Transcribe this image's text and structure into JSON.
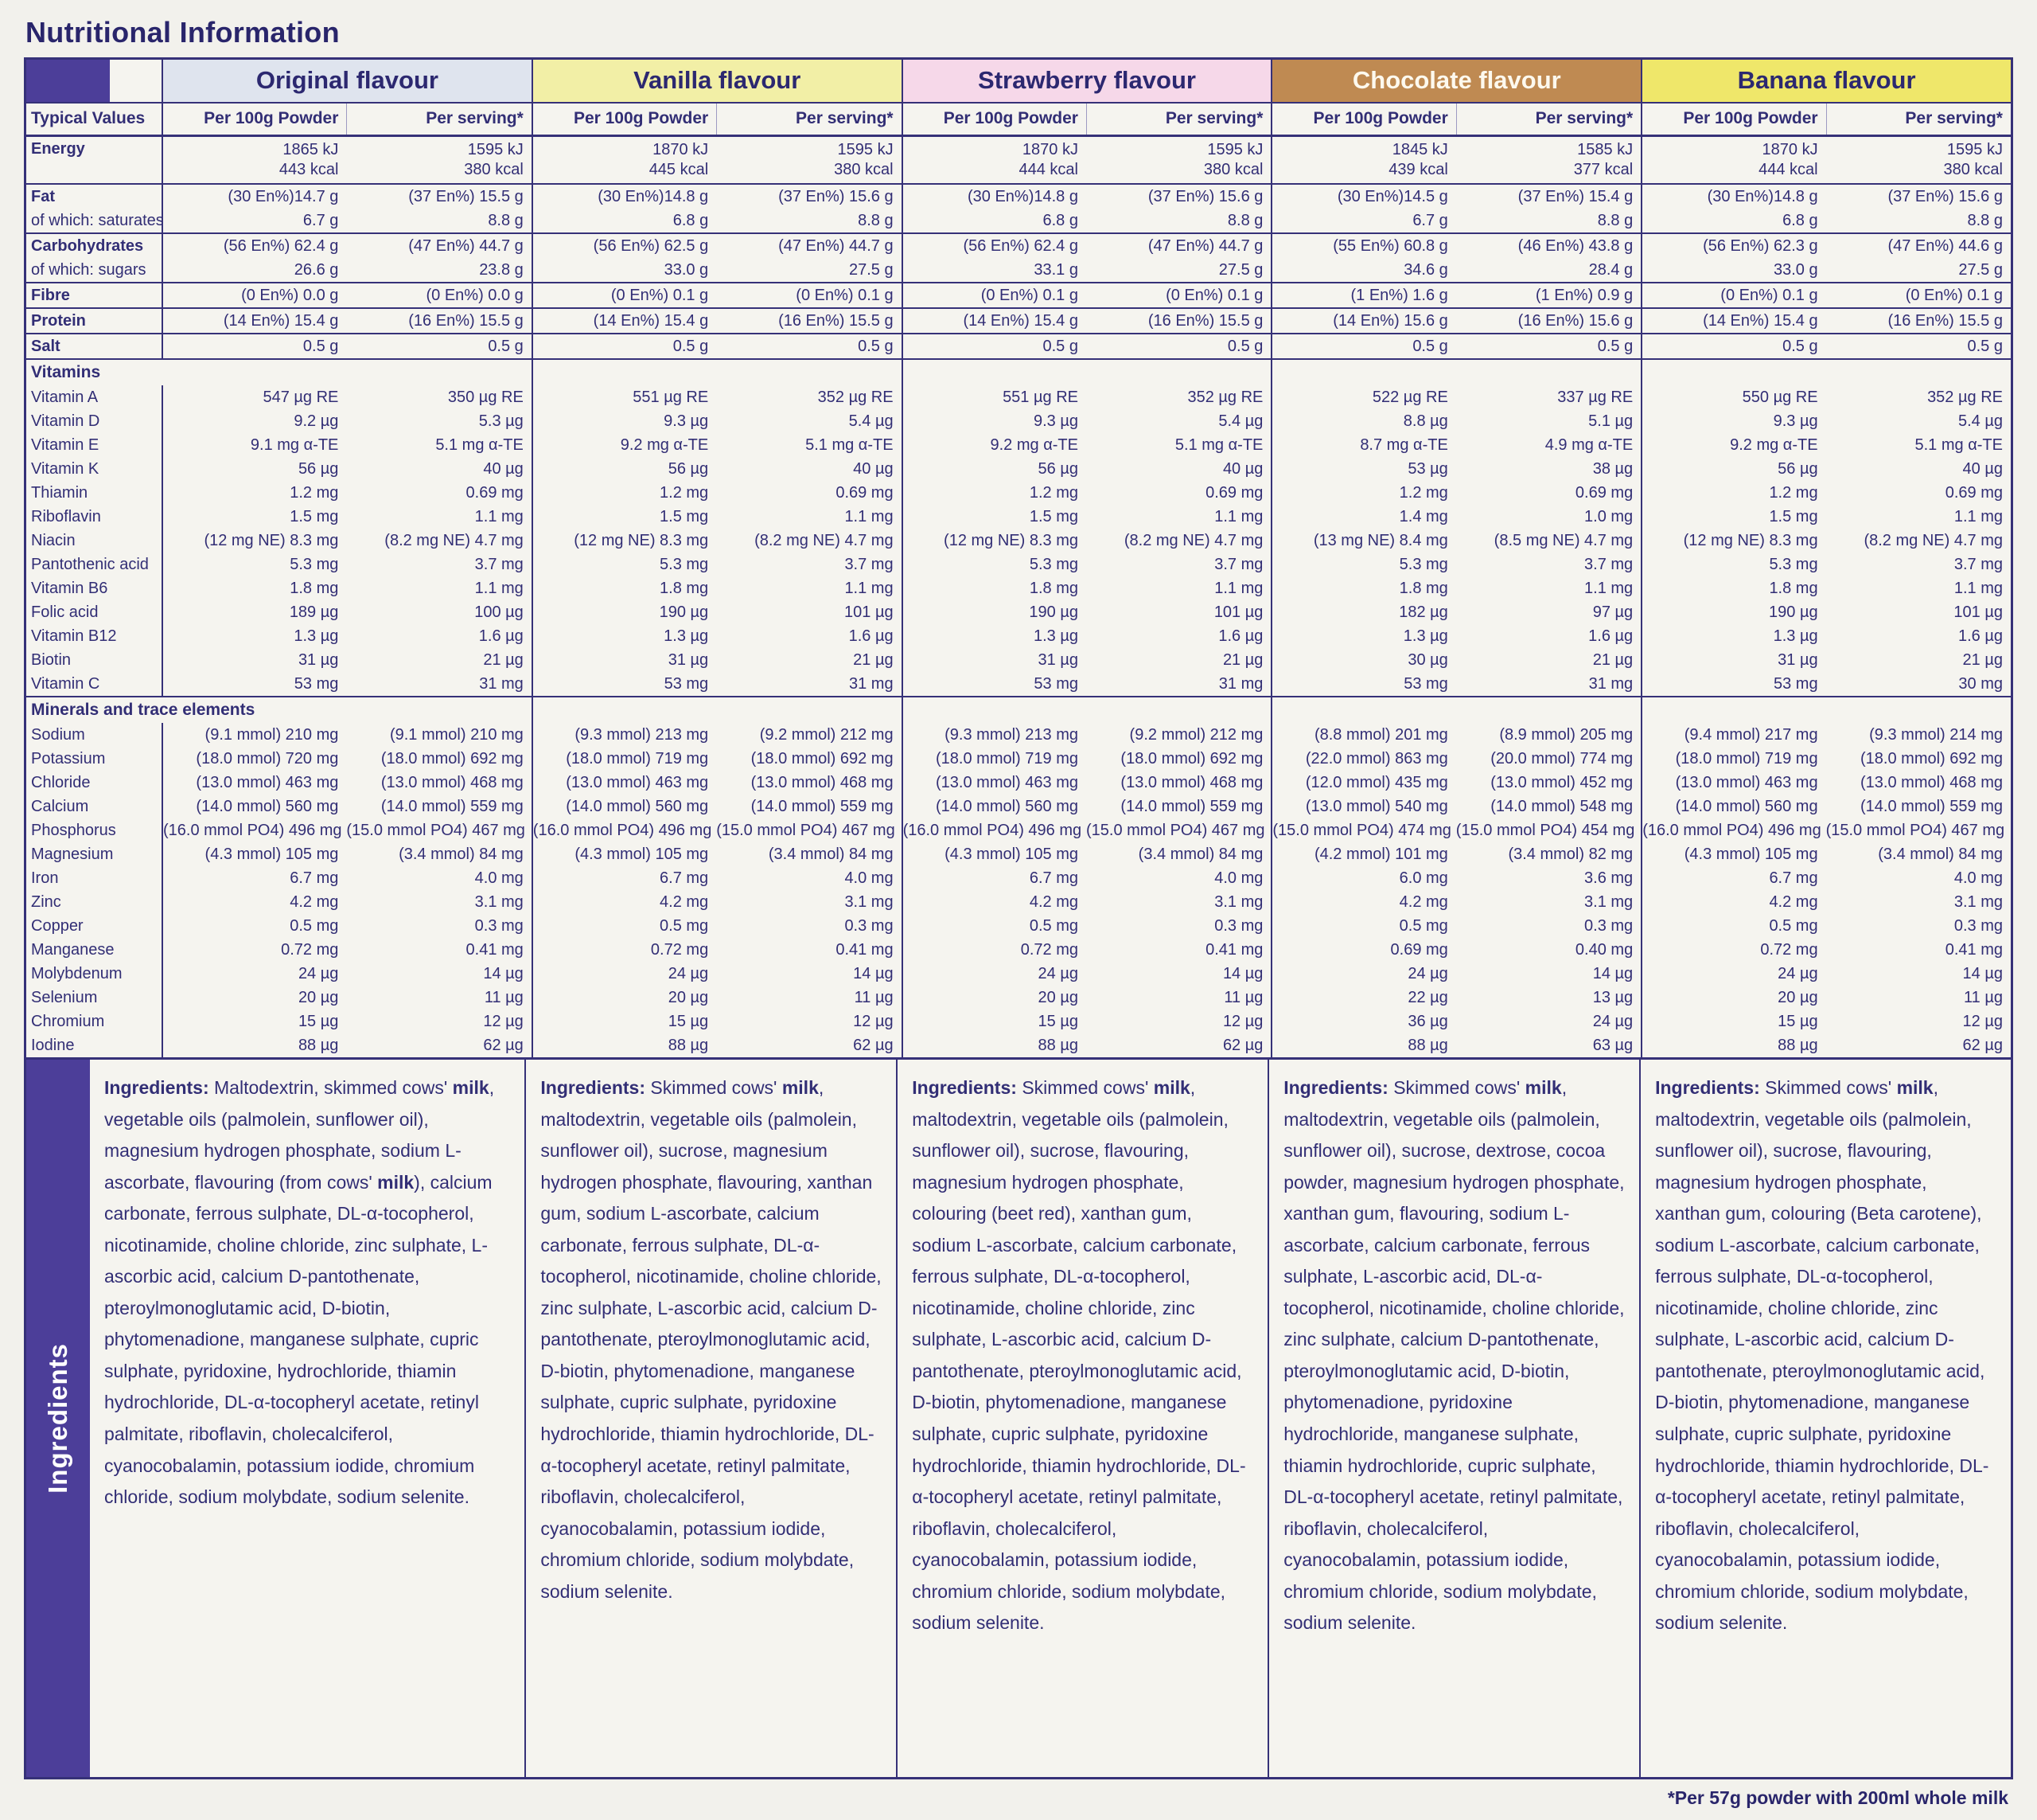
{
  "title": "Nutritional Information",
  "footnote": "*Per 57g powder with 200ml whole milk",
  "colors": {
    "accent_purple": "#4c3e99",
    "line_navy": "#363178",
    "text_navy": "#322e75"
  },
  "table": {
    "typical_values_label": "Typical Values",
    "subcol_labels": [
      "Per 100g Powder",
      "Per serving*"
    ],
    "flavours": [
      {
        "name": "Original flavour",
        "header_bg": "#dfe4ee",
        "header_fg": "#2c2870"
      },
      {
        "name": "Vanilla flavour",
        "header_bg": "#f2efa6",
        "header_fg": "#2c2870"
      },
      {
        "name": "Strawberry flavour",
        "header_bg": "#f6d8e9",
        "header_fg": "#2c2870"
      },
      {
        "name": "Chocolate flavour",
        "header_bg": "#bf8a52",
        "header_fg": "#fdf9ee"
      },
      {
        "name": "Banana flavour",
        "header_bg": "#efe76a",
        "header_fg": "#2c2870"
      }
    ],
    "rows": [
      {
        "type": "data",
        "style": "main",
        "label": "Energy",
        "rule": true,
        "values": [
          [
            "1865 kJ",
            "443 kcal"
          ],
          [
            "1595 kJ",
            "380 kcal"
          ],
          [
            "1870 kJ",
            "445 kcal"
          ],
          [
            "1595 kJ",
            "380 kcal"
          ],
          [
            "1870 kJ",
            "444 kcal"
          ],
          [
            "1595 kJ",
            "380 kcal"
          ],
          [
            "1845 kJ",
            "439 kcal"
          ],
          [
            "1585 kJ",
            "377 kcal"
          ],
          [
            "1870 kJ",
            "444 kcal"
          ],
          [
            "1595 kJ",
            "380 kcal"
          ]
        ]
      },
      {
        "type": "data",
        "style": "main",
        "label": "Fat",
        "values": [
          "(30 En%)14.7 g",
          "(37 En%) 15.5 g",
          "(30 En%)14.8 g",
          "(37 En%) 15.6 g",
          "(30 En%)14.8 g",
          "(37 En%) 15.6 g",
          "(30 En%)14.5 g",
          "(37 En%) 15.4 g",
          "(30 En%)14.8 g",
          "(37 En%) 15.6 g"
        ]
      },
      {
        "type": "data",
        "style": "sub",
        "label": "of which: saturates",
        "rule": true,
        "values": [
          "6.7 g",
          "8.8 g",
          "6.8 g",
          "8.8 g",
          "6.8 g",
          "8.8 g",
          "6.7 g",
          "8.8 g",
          "6.8 g",
          "8.8 g"
        ]
      },
      {
        "type": "data",
        "style": "main",
        "label": "Carbohydrates",
        "values": [
          "(56 En%) 62.4 g",
          "(47 En%) 44.7 g",
          "(56 En%) 62.5 g",
          "(47 En%) 44.7 g",
          "(56 En%) 62.4 g",
          "(47 En%) 44.7 g",
          "(55 En%) 60.8 g",
          "(46 En%) 43.8 g",
          "(56 En%) 62.3 g",
          "(47 En%) 44.6 g"
        ]
      },
      {
        "type": "data",
        "style": "sub",
        "label": "of which: sugars",
        "rule": true,
        "values": [
          "26.6 g",
          "23.8 g",
          "33.0 g",
          "27.5 g",
          "33.1 g",
          "27.5 g",
          "34.6 g",
          "28.4 g",
          "33.0 g",
          "27.5 g"
        ]
      },
      {
        "type": "data",
        "style": "main",
        "label": "Fibre",
        "rule": true,
        "values": [
          "(0 En%) 0.0 g",
          "(0 En%) 0.0 g",
          "(0 En%) 0.1 g",
          "(0 En%) 0.1 g",
          "(0 En%) 0.1 g",
          "(0 En%) 0.1 g",
          "(1 En%) 1.6 g",
          "(1 En%) 0.9 g",
          "(0 En%) 0.1 g",
          "(0 En%) 0.1 g"
        ]
      },
      {
        "type": "data",
        "style": "main",
        "label": "Protein",
        "rule": true,
        "values": [
          "(14 En%) 15.4 g",
          "(16 En%) 15.5 g",
          "(14 En%) 15.4 g",
          "(16 En%) 15.5 g",
          "(14 En%) 15.4 g",
          "(16 En%) 15.5 g",
          "(14 En%) 15.6 g",
          "(16 En%) 15.6 g",
          "(14 En%) 15.4 g",
          "(16 En%) 15.5 g"
        ]
      },
      {
        "type": "data",
        "style": "main",
        "label": "Salt",
        "rule": true,
        "values": [
          "0.5 g",
          "0.5 g",
          "0.5 g",
          "0.5 g",
          "0.5 g",
          "0.5 g",
          "0.5 g",
          "0.5 g",
          "0.5 g",
          "0.5 g"
        ]
      },
      {
        "type": "section",
        "label": "Vitamins"
      },
      {
        "type": "data",
        "label": "Vitamin A",
        "values": [
          "547 µg RE",
          "350 µg RE",
          "551 µg RE",
          "352 µg RE",
          "551 µg RE",
          "352 µg RE",
          "522 µg RE",
          "337 µg RE",
          "550 µg RE",
          "352 µg RE"
        ]
      },
      {
        "type": "data",
        "label": "Vitamin D",
        "values": [
          "9.2 µg",
          "5.3 µg",
          "9.3 µg",
          "5.4 µg",
          "9.3 µg",
          "5.4 µg",
          "8.8 µg",
          "5.1 µg",
          "9.3 µg",
          "5.4 µg"
        ]
      },
      {
        "type": "data",
        "label": "Vitamin E",
        "values": [
          "9.1 mg α-TE",
          "5.1 mg α-TE",
          "9.2 mg α-TE",
          "5.1 mg α-TE",
          "9.2 mg α-TE",
          "5.1 mg α-TE",
          "8.7 mg α-TE",
          "4.9 mg α-TE",
          "9.2 mg α-TE",
          "5.1 mg α-TE"
        ]
      },
      {
        "type": "data",
        "label": "Vitamin K",
        "values": [
          "56 µg",
          "40 µg",
          "56 µg",
          "40 µg",
          "56 µg",
          "40 µg",
          "53 µg",
          "38 µg",
          "56 µg",
          "40 µg"
        ]
      },
      {
        "type": "data",
        "label": "Thiamin",
        "values": [
          "1.2 mg",
          "0.69 mg",
          "1.2 mg",
          "0.69 mg",
          "1.2 mg",
          "0.69 mg",
          "1.2 mg",
          "0.69 mg",
          "1.2 mg",
          "0.69 mg"
        ]
      },
      {
        "type": "data",
        "label": "Riboflavin",
        "values": [
          "1.5 mg",
          "1.1 mg",
          "1.5 mg",
          "1.1 mg",
          "1.5 mg",
          "1.1 mg",
          "1.4 mg",
          "1.0 mg",
          "1.5 mg",
          "1.1 mg"
        ]
      },
      {
        "type": "data",
        "label": "Niacin",
        "values": [
          "(12 mg NE) 8.3 mg",
          "(8.2 mg NE) 4.7 mg",
          "(12 mg NE) 8.3 mg",
          "(8.2 mg NE) 4.7 mg",
          "(12 mg NE) 8.3 mg",
          "(8.2 mg NE) 4.7 mg",
          "(13 mg NE) 8.4 mg",
          "(8.5 mg NE) 4.7 mg",
          "(12 mg NE) 8.3 mg",
          "(8.2 mg NE) 4.7 mg"
        ]
      },
      {
        "type": "data",
        "label": "Pantothenic acid",
        "values": [
          "5.3 mg",
          "3.7 mg",
          "5.3 mg",
          "3.7 mg",
          "5.3 mg",
          "3.7 mg",
          "5.3 mg",
          "3.7 mg",
          "5.3 mg",
          "3.7 mg"
        ]
      },
      {
        "type": "data",
        "label": "Vitamin B6",
        "values": [
          "1.8 mg",
          "1.1 mg",
          "1.8 mg",
          "1.1 mg",
          "1.8 mg",
          "1.1 mg",
          "1.8 mg",
          "1.1 mg",
          "1.8 mg",
          "1.1 mg"
        ]
      },
      {
        "type": "data",
        "label": "Folic acid",
        "values": [
          "189 µg",
          "100 µg",
          "190 µg",
          "101 µg",
          "190 µg",
          "101 µg",
          "182 µg",
          "97 µg",
          "190 µg",
          "101 µg"
        ]
      },
      {
        "type": "data",
        "label": "Vitamin B12",
        "values": [
          "1.3 µg",
          "1.6 µg",
          "1.3 µg",
          "1.6 µg",
          "1.3 µg",
          "1.6 µg",
          "1.3 µg",
          "1.6 µg",
          "1.3 µg",
          "1.6 µg"
        ]
      },
      {
        "type": "data",
        "label": "Biotin",
        "values": [
          "31 µg",
          "21 µg",
          "31 µg",
          "21 µg",
          "31 µg",
          "21 µg",
          "30 µg",
          "21 µg",
          "31 µg",
          "21 µg"
        ]
      },
      {
        "type": "data",
        "label": "Vitamin C",
        "rule": true,
        "values": [
          "53 mg",
          "31 mg",
          "53 mg",
          "31 mg",
          "53 mg",
          "31 mg",
          "53 mg",
          "31 mg",
          "53 mg",
          "30 mg"
        ]
      },
      {
        "type": "section",
        "label": "Minerals and trace elements"
      },
      {
        "type": "data",
        "label": "Sodium",
        "values": [
          "(9.1 mmol) 210 mg",
          "(9.1 mmol) 210 mg",
          "(9.3 mmol) 213 mg",
          "(9.2 mmol) 212 mg",
          "(9.3 mmol) 213 mg",
          "(9.2 mmol) 212 mg",
          "(8.8 mmol) 201 mg",
          "(8.9 mmol) 205 mg",
          "(9.4 mmol) 217 mg",
          "(9.3 mmol) 214 mg"
        ]
      },
      {
        "type": "data",
        "label": "Potassium",
        "values": [
          "(18.0 mmol) 720 mg",
          "(18.0 mmol) 692 mg",
          "(18.0 mmol) 719 mg",
          "(18.0 mmol) 692 mg",
          "(18.0 mmol) 719 mg",
          "(18.0 mmol) 692 mg",
          "(22.0 mmol) 863 mg",
          "(20.0 mmol) 774 mg",
          "(18.0 mmol) 719 mg",
          "(18.0 mmol) 692 mg"
        ]
      },
      {
        "type": "data",
        "label": "Chloride",
        "values": [
          "(13.0 mmol) 463 mg",
          "(13.0 mmol) 468 mg",
          "(13.0 mmol) 463 mg",
          "(13.0 mmol) 468 mg",
          "(13.0 mmol) 463 mg",
          "(13.0 mmol) 468 mg",
          "(12.0 mmol) 435 mg",
          "(13.0 mmol) 452 mg",
          "(13.0 mmol) 463 mg",
          "(13.0 mmol) 468 mg"
        ]
      },
      {
        "type": "data",
        "label": "Calcium",
        "values": [
          "(14.0 mmol) 560 mg",
          "(14.0 mmol) 559 mg",
          "(14.0 mmol) 560 mg",
          "(14.0 mmol) 559 mg",
          "(14.0 mmol) 560 mg",
          "(14.0 mmol) 559 mg",
          "(13.0 mmol) 540 mg",
          "(14.0 mmol) 548 mg",
          "(14.0 mmol) 560 mg",
          "(14.0 mmol) 559 mg"
        ]
      },
      {
        "type": "data",
        "label": "Phosphorus",
        "values": [
          "(16.0 mmol PO4) 496 mg",
          "(15.0 mmol PO4) 467 mg",
          "(16.0 mmol PO4) 496 mg",
          "(15.0 mmol PO4) 467 mg",
          "(16.0 mmol PO4) 496 mg",
          "(15.0 mmol PO4) 467 mg",
          "(15.0 mmol PO4) 474 mg",
          "(15.0 mmol PO4) 454 mg",
          "(16.0 mmol PO4) 496 mg",
          "(15.0 mmol PO4) 467 mg"
        ]
      },
      {
        "type": "data",
        "label": "Magnesium",
        "values": [
          "(4.3 mmol) 105 mg",
          "(3.4 mmol) 84 mg",
          "(4.3 mmol) 105 mg",
          "(3.4 mmol) 84 mg",
          "(4.3 mmol) 105 mg",
          "(3.4 mmol) 84 mg",
          "(4.2 mmol) 101 mg",
          "(3.4 mmol) 82 mg",
          "(4.3 mmol) 105 mg",
          "(3.4 mmol) 84 mg"
        ]
      },
      {
        "type": "data",
        "label": "Iron",
        "values": [
          "6.7 mg",
          "4.0 mg",
          "6.7 mg",
          "4.0 mg",
          "6.7 mg",
          "4.0 mg",
          "6.0 mg",
          "3.6 mg",
          "6.7 mg",
          "4.0 mg"
        ]
      },
      {
        "type": "data",
        "label": "Zinc",
        "values": [
          "4.2 mg",
          "3.1 mg",
          "4.2 mg",
          "3.1 mg",
          "4.2 mg",
          "3.1 mg",
          "4.2 mg",
          "3.1 mg",
          "4.2 mg",
          "3.1 mg"
        ]
      },
      {
        "type": "data",
        "label": "Copper",
        "values": [
          "0.5 mg",
          "0.3 mg",
          "0.5 mg",
          "0.3 mg",
          "0.5 mg",
          "0.3 mg",
          "0.5 mg",
          "0.3 mg",
          "0.5 mg",
          "0.3 mg"
        ]
      },
      {
        "type": "data",
        "label": "Manganese",
        "values": [
          "0.72 mg",
          "0.41 mg",
          "0.72 mg",
          "0.41 mg",
          "0.72 mg",
          "0.41 mg",
          "0.69 mg",
          "0.40 mg",
          "0.72 mg",
          "0.41 mg"
        ]
      },
      {
        "type": "data",
        "label": "Molybdenum",
        "values": [
          "24 µg",
          "14 µg",
          "24 µg",
          "14 µg",
          "24 µg",
          "14 µg",
          "24 µg",
          "14 µg",
          "24 µg",
          "14 µg"
        ]
      },
      {
        "type": "data",
        "label": "Selenium",
        "values": [
          "20 µg",
          "11 µg",
          "20 µg",
          "11 µg",
          "20 µg",
          "11 µg",
          "22 µg",
          "13 µg",
          "20 µg",
          "11 µg"
        ]
      },
      {
        "type": "data",
        "label": "Chromium",
        "values": [
          "15 µg",
          "12 µg",
          "15 µg",
          "12 µg",
          "15 µg",
          "12 µg",
          "36 µg",
          "24 µg",
          "15 µg",
          "12 µg"
        ]
      },
      {
        "type": "data",
        "label": "Iodine",
        "values": [
          "88 µg",
          "62 µg",
          "88 µg",
          "62 µg",
          "88 µg",
          "62 µg",
          "88 µg",
          "63 µg",
          "88 µg",
          "62 µg"
        ]
      }
    ]
  },
  "ingredients": {
    "side_label": "Ingredients",
    "columns": [
      {
        "lead": "Ingredients:",
        "text": "Maltodextrin, skimmed cows' milk, vegetable oils (palmolein, sunflower oil), magnesium hydrogen phosphate, sodium L-ascorbate, flavouring (from cows' milk), calcium carbonate, ferrous sulphate, DL-α-tocopherol, nicotinamide, choline chloride, zinc sulphate, L-ascorbic acid, calcium D-pantothenate, pteroylmonoglutamic acid, D-biotin, phytomenadione, manganese sulphate, cupric sulphate, pyridoxine, hydrochloride, thiamin hydrochloride, DL-α-tocopheryl acetate, retinyl palmitate, riboflavin, cholecalciferol, cyanocobalamin, potassium iodide, chromium chloride, sodium molybdate, sodium selenite."
      },
      {
        "lead": "Ingredients:",
        "text": "Skimmed cows' milk, maltodextrin, vegetable oils (palmolein, sunflower oil), sucrose, magnesium hydrogen phosphate, flavouring, xanthan gum, sodium L-ascorbate, calcium carbonate, ferrous sulphate, DL-α-tocopherol, nicotinamide, choline chloride, zinc sulphate, L-ascorbic acid, calcium D-pantothenate, pteroylmonoglutamic acid, D-biotin, phytomenadione, manganese sulphate, cupric sulphate, pyridoxine hydrochloride, thiamin hydrochloride, DL-α-tocopheryl acetate, retinyl palmitate, riboflavin, cholecalciferol, cyanocobalamin, potassium iodide, chromium chloride, sodium molybdate, sodium selenite."
      },
      {
        "lead": "Ingredients:",
        "text": "Skimmed cows' milk, maltodextrin, vegetable oils (palmolein, sunflower oil), sucrose, flavouring, magnesium hydrogen phosphate, colouring (beet red), xanthan gum, sodium L-ascorbate, calcium carbonate, ferrous sulphate, DL-α-tocopherol, nicotinamide, choline chloride, zinc sulphate, L-ascorbic acid, calcium D-pantothenate, pteroylmonoglutamic acid, D-biotin, phytomenadione, manganese sulphate, cupric sulphate, pyridoxine hydrochloride, thiamin hydrochloride, DL-α-tocopheryl acetate, retinyl palmitate, riboflavin, cholecalciferol, cyanocobalamin, potassium iodide, chromium chloride, sodium molybdate, sodium selenite."
      },
      {
        "lead": "Ingredients:",
        "text": "Skimmed cows' milk, maltodextrin, vegetable oils (palmolein, sunflower oil), sucrose, dextrose, cocoa powder, magnesium hydrogen phosphate, xanthan gum, flavouring, sodium L-ascorbate, calcium carbonate, ferrous sulphate, L-ascorbic acid, DL-α-tocopherol, nicotinamide, choline chloride, zinc sulphate, calcium D-pantothenate, pteroylmonoglutamic acid, D-biotin, phytomenadione, pyridoxine hydrochloride, manganese sulphate, thiamin hydrochloride, cupric sulphate, DL-α-tocopheryl acetate, retinyl palmitate, riboflavin, cholecalciferol, cyanocobalamin, potassium iodide, chromium chloride, sodium molybdate, sodium selenite."
      },
      {
        "lead": "Ingredients:",
        "text": "Skimmed cows' milk, maltodextrin, vegetable oils (palmolein, sunflower oil), sucrose, flavouring, magnesium hydrogen phosphate, xanthan gum, colouring (Beta carotene), sodium L-ascorbate, calcium carbonate, ferrous sulphate, DL-α-tocopherol, nicotinamide, choline chloride, zinc sulphate, L-ascorbic acid, calcium D-pantothenate, pteroylmonoglutamic acid, D-biotin, phytomenadione, manganese sulphate, cupric sulphate, pyridoxine hydrochloride, thiamin hydrochloride, DL-α-tocopheryl acetate, retinyl palmitate, riboflavin, cholecalciferol, cyanocobalamin, potassium iodide, chromium chloride, sodium molybdate, sodium selenite."
      }
    ]
  }
}
